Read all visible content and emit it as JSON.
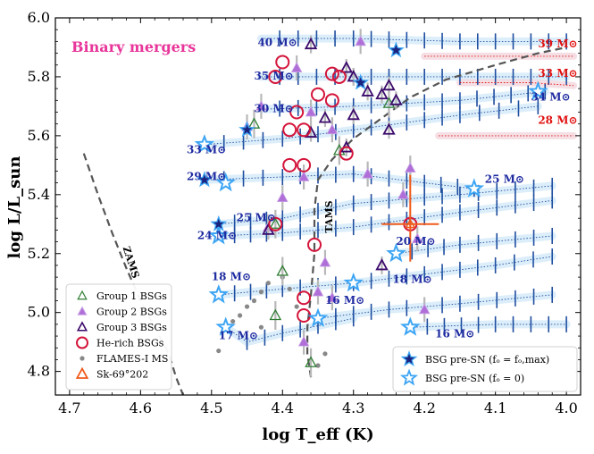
{
  "chart_data": {
    "type": "scatter",
    "title": "Binary mergers",
    "xlabel": "log T_eff (K)",
    "ylabel": "log L/L_sun",
    "xlim": [
      4.72,
      3.98
    ],
    "ylim": [
      4.72,
      6.0
    ],
    "x_ticks": [
      "4.7",
      "4.6",
      "4.5",
      "4.4",
      "4.3",
      "4.2",
      "4.1",
      "4.0"
    ],
    "y_ticks": [
      "4.8",
      "5.0",
      "5.2",
      "5.4",
      "5.6",
      "5.8",
      "6.0"
    ],
    "colors": {
      "title": "#e8359a",
      "group1": "#2e7d32",
      "group2_fill": "#b06fd8",
      "group3": "#3b0a6b",
      "he_rich": "#d4143a",
      "flames": "#888888",
      "sk69": "#f05a1a",
      "bsg_max": "#1a237e",
      "bsg_zero": "#3da5f4",
      "track": "#1e4ea0",
      "track_red": "#e01010"
    },
    "zams_label": "ZAMS",
    "tams_label": "TAMS",
    "track_labels_blue": [
      {
        "text": "40 M⊙",
        "x": 4.435,
        "y": 5.905
      },
      {
        "text": "35 M⊙",
        "x": 4.44,
        "y": 5.79
      },
      {
        "text": "30 M⊙",
        "x": 4.44,
        "y": 5.68
      },
      {
        "text": "33 M⊙",
        "x": 4.535,
        "y": 5.54
      },
      {
        "text": "29 M⊙",
        "x": 4.535,
        "y": 5.45
      },
      {
        "text": "25 M⊙",
        "x": 4.465,
        "y": 5.31
      },
      {
        "text": "24 M⊙",
        "x": 4.52,
        "y": 5.25
      },
      {
        "text": "20 M⊙",
        "x": 4.24,
        "y": 5.23
      },
      {
        "text": "18 M⊙",
        "x": 4.245,
        "y": 5.1
      },
      {
        "text": "18 M⊙",
        "x": 4.5,
        "y": 5.11
      },
      {
        "text": "16 M⊙",
        "x": 4.34,
        "y": 5.03
      },
      {
        "text": "17 M⊙",
        "x": 4.49,
        "y": 4.91
      },
      {
        "text": "16 M⊙",
        "x": 4.185,
        "y": 4.915
      },
      {
        "text": "34 M⊙",
        "x": 4.05,
        "y": 5.72
      },
      {
        "text": "25 M⊙",
        "x": 4.115,
        "y": 5.44
      }
    ],
    "track_labels_red": [
      {
        "text": "39 M⊙",
        "x": 4.04,
        "y": 5.9
      },
      {
        "text": "33 M⊙",
        "x": 4.04,
        "y": 5.8
      },
      {
        "text": "28 M⊙",
        "x": 4.04,
        "y": 5.64
      }
    ],
    "legend_left": [
      {
        "label": "Group 1 BSGs",
        "symbol": "tri-open-green"
      },
      {
        "label": "Group 2 BSGs",
        "symbol": "tri-filled-purple"
      },
      {
        "label": "Group 3 BSGs",
        "symbol": "tri-open-indigo"
      },
      {
        "label": "He-rich BSGs",
        "symbol": "circle-red"
      },
      {
        "label": "FLAMES-I MS",
        "symbol": "dot-gray"
      },
      {
        "label": "Sk-69°202",
        "symbol": "tri-open-orange"
      }
    ],
    "legend_right": [
      {
        "label": "BSG pre-SN (fₒ = fₒ,max)",
        "symbol": "star-navy"
      },
      {
        "label": "BSG pre-SN (fₒ = 0)",
        "symbol": "star-lightblue"
      }
    ],
    "series": [
      {
        "name": "Group 1 BSGs",
        "points": [
          [
            4.44,
            5.64
          ],
          [
            4.41,
            5.3
          ],
          [
            4.4,
            5.14
          ],
          [
            4.41,
            4.99
          ],
          [
            4.32,
            5.55
          ],
          [
            4.25,
            5.71
          ],
          [
            4.36,
            4.83
          ]
        ]
      },
      {
        "name": "Group 2 BSGs",
        "points": [
          [
            4.43,
            5.7
          ],
          [
            4.45,
            5.63
          ],
          [
            4.38,
            5.83
          ],
          [
            4.36,
            5.68
          ],
          [
            4.33,
            5.62
          ],
          [
            4.29,
            5.92
          ],
          [
            4.28,
            5.47
          ],
          [
            4.23,
            5.4
          ],
          [
            4.22,
            5.49
          ],
          [
            4.21,
            5.25
          ],
          [
            4.2,
            5.01
          ],
          [
            4.4,
            5.39
          ],
          [
            4.42,
            5.29
          ],
          [
            4.37,
            5.46
          ],
          [
            4.35,
            5.07
          ],
          [
            4.34,
            5.17
          ],
          [
            4.33,
            5.05
          ],
          [
            4.37,
            4.9
          ]
        ]
      },
      {
        "name": "Group 3 BSGs",
        "points": [
          [
            4.36,
            5.91
          ],
          [
            4.31,
            5.83
          ],
          [
            4.3,
            5.8
          ],
          [
            4.34,
            5.66
          ],
          [
            4.31,
            5.56
          ],
          [
            4.3,
            5.67
          ],
          [
            4.28,
            5.75
          ],
          [
            4.26,
            5.74
          ],
          [
            4.25,
            5.77
          ],
          [
            4.24,
            5.72
          ],
          [
            4.25,
            5.62
          ],
          [
            4.42,
            5.28
          ],
          [
            4.26,
            5.16
          ],
          [
            4.36,
            5.61
          ]
        ]
      },
      {
        "name": "He-rich BSGs",
        "points": [
          [
            4.4,
            5.85
          ],
          [
            4.41,
            5.8
          ],
          [
            4.38,
            5.68
          ],
          [
            4.39,
            5.62
          ],
          [
            4.37,
            5.62
          ],
          [
            4.39,
            5.5
          ],
          [
            4.37,
            5.5
          ],
          [
            4.33,
            5.81
          ],
          [
            4.32,
            5.8
          ],
          [
            4.35,
            5.74
          ],
          [
            4.33,
            5.72
          ],
          [
            4.31,
            5.54
          ],
          [
            4.355,
            5.23
          ],
          [
            4.37,
            5.05
          ],
          [
            4.37,
            4.99
          ],
          [
            4.41,
            5.3
          ],
          [
            4.22,
            5.3
          ]
        ]
      },
      {
        "name": "FLAMES-I MS",
        "points": [
          [
            4.46,
            4.99
          ],
          [
            4.45,
            5.02
          ],
          [
            4.44,
            5.04
          ],
          [
            4.43,
            5.07
          ],
          [
            4.42,
            5.1
          ],
          [
            4.4,
            5.12
          ],
          [
            4.39,
            5.08
          ],
          [
            4.38,
            5.02
          ],
          [
            4.47,
            4.97
          ],
          [
            4.49,
            4.87
          ],
          [
            4.43,
            4.95
          ],
          [
            4.34,
            4.86
          ],
          [
            4.35,
            4.82
          ]
        ]
      },
      {
        "name": "Sk-69 202",
        "points": [
          [
            4.22,
            5.3
          ]
        ]
      },
      {
        "name": "BSG pre-SN max",
        "points": [
          [
            4.24,
            5.89
          ],
          [
            4.29,
            5.78
          ],
          [
            4.45,
            5.62
          ],
          [
            4.51,
            5.45
          ],
          [
            4.49,
            5.3
          ]
        ]
      },
      {
        "name": "BSG pre-SN zero",
        "points": [
          [
            4.04,
            5.75
          ],
          [
            4.13,
            5.42
          ],
          [
            4.51,
            5.57
          ],
          [
            4.48,
            5.44
          ],
          [
            4.49,
            5.26
          ],
          [
            4.24,
            5.2
          ],
          [
            4.3,
            5.1
          ],
          [
            4.49,
            5.06
          ],
          [
            4.35,
            4.98
          ],
          [
            4.22,
            4.95
          ],
          [
            4.48,
            4.95
          ]
        ]
      }
    ],
    "zams": [
      [
        4.68,
        5.54
      ],
      [
        4.66,
        5.4
      ],
      [
        4.64,
        5.27
      ],
      [
        4.62,
        5.15
      ],
      [
        4.6,
        5.04
      ],
      [
        4.58,
        4.95
      ],
      [
        4.56,
        4.86
      ],
      [
        4.55,
        4.78
      ],
      [
        4.54,
        4.72
      ]
    ],
    "tams": [
      [
        4.36,
        4.78
      ],
      [
        4.365,
        4.86
      ],
      [
        4.365,
        4.95
      ],
      [
        4.36,
        5.06
      ],
      [
        4.355,
        5.2
      ],
      [
        4.355,
        5.35
      ],
      [
        4.35,
        5.45
      ],
      [
        4.33,
        5.52
      ],
      [
        4.3,
        5.59
      ],
      [
        4.26,
        5.66
      ],
      [
        4.22,
        5.73
      ],
      [
        4.17,
        5.79
      ],
      [
        4.1,
        5.84
      ],
      [
        4.04,
        5.88
      ],
      [
        4.0,
        5.9
      ]
    ],
    "tracks_blue": [
      [
        [
          4.43,
          5.93
        ],
        [
          4.3,
          5.93
        ],
        [
          4.15,
          5.92
        ],
        [
          4.0,
          5.92
        ]
      ],
      [
        [
          4.43,
          5.8
        ],
        [
          4.3,
          5.8
        ],
        [
          4.15,
          5.8
        ],
        [
          4.0,
          5.8
        ]
      ],
      [
        [
          4.43,
          5.69
        ],
        [
          4.3,
          5.7
        ],
        [
          4.15,
          5.72
        ],
        [
          4.03,
          5.75
        ]
      ],
      [
        [
          4.51,
          5.57
        ],
        [
          4.4,
          5.59
        ],
        [
          4.3,
          5.62
        ],
        [
          4.15,
          5.67
        ],
        [
          4.04,
          5.7
        ]
      ],
      [
        [
          4.51,
          5.45
        ],
        [
          4.4,
          5.46
        ],
        [
          4.3,
          5.47
        ],
        [
          4.2,
          5.44
        ],
        [
          4.13,
          5.42
        ]
      ],
      [
        [
          4.49,
          5.3
        ],
        [
          4.4,
          5.32
        ],
        [
          4.3,
          5.37
        ],
        [
          4.15,
          5.4
        ],
        [
          4.02,
          5.43
        ]
      ],
      [
        [
          4.49,
          5.26
        ],
        [
          4.4,
          5.27
        ],
        [
          4.3,
          5.29
        ],
        [
          4.15,
          5.34
        ],
        [
          4.02,
          5.38
        ]
      ],
      [
        [
          4.24,
          5.2
        ],
        [
          4.15,
          5.23
        ],
        [
          4.02,
          5.26
        ]
      ],
      [
        [
          4.3,
          5.1
        ],
        [
          4.2,
          5.13
        ],
        [
          4.1,
          5.16
        ],
        [
          4.02,
          5.19
        ]
      ],
      [
        [
          4.49,
          5.06
        ],
        [
          4.4,
          5.08
        ],
        [
          4.3,
          5.1
        ]
      ],
      [
        [
          4.35,
          4.98
        ],
        [
          4.25,
          5.01
        ],
        [
          4.15,
          5.03
        ],
        [
          4.02,
          5.06
        ]
      ],
      [
        [
          4.48,
          4.95
        ],
        [
          4.45,
          4.9
        ],
        [
          4.4,
          4.93
        ],
        [
          4.3,
          4.98
        ]
      ],
      [
        [
          4.22,
          4.95
        ],
        [
          4.1,
          4.96
        ],
        [
          4.0,
          4.96
        ]
      ]
    ],
    "tracks_red": [
      [
        [
          4.2,
          5.87
        ],
        [
          4.1,
          5.87
        ],
        [
          3.99,
          5.87
        ]
      ],
      [
        [
          4.15,
          5.78
        ],
        [
          4.05,
          5.78
        ],
        [
          3.99,
          5.77
        ]
      ],
      [
        [
          4.18,
          5.6
        ],
        [
          4.1,
          5.6
        ],
        [
          3.99,
          5.6
        ]
      ]
    ]
  }
}
